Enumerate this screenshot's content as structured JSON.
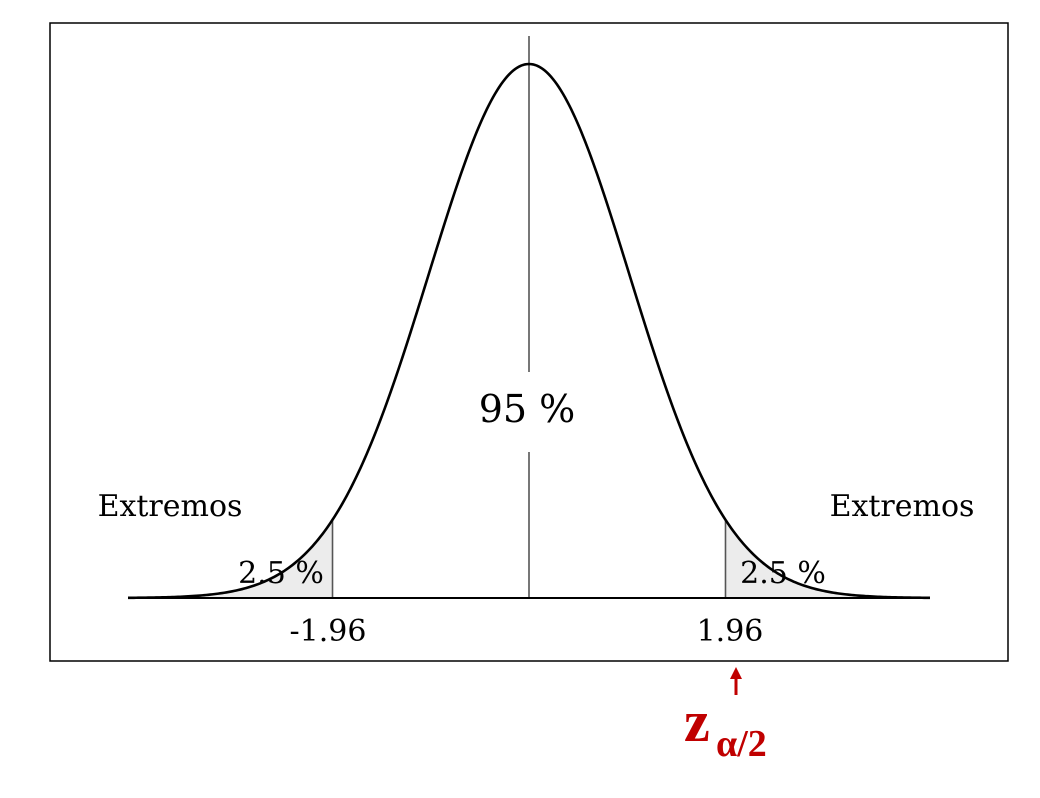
{
  "chart_data": {
    "type": "area",
    "curve": "standard normal density",
    "x_range": [
      -4,
      4
    ],
    "critical_values": [
      -1.96,
      1.96
    ],
    "tick_labels": [
      "-1.96",
      "1.96"
    ],
    "center_label": "95 %",
    "tail_labels": [
      "2.5 %",
      "2.5 %"
    ],
    "side_labels": [
      "Extremos",
      "Extremos"
    ],
    "tail_fill_color": "#ececec"
  },
  "annotation": {
    "symbol": "z",
    "subscript": "α/2",
    "color": "#c00000",
    "points_to": "1.96"
  }
}
